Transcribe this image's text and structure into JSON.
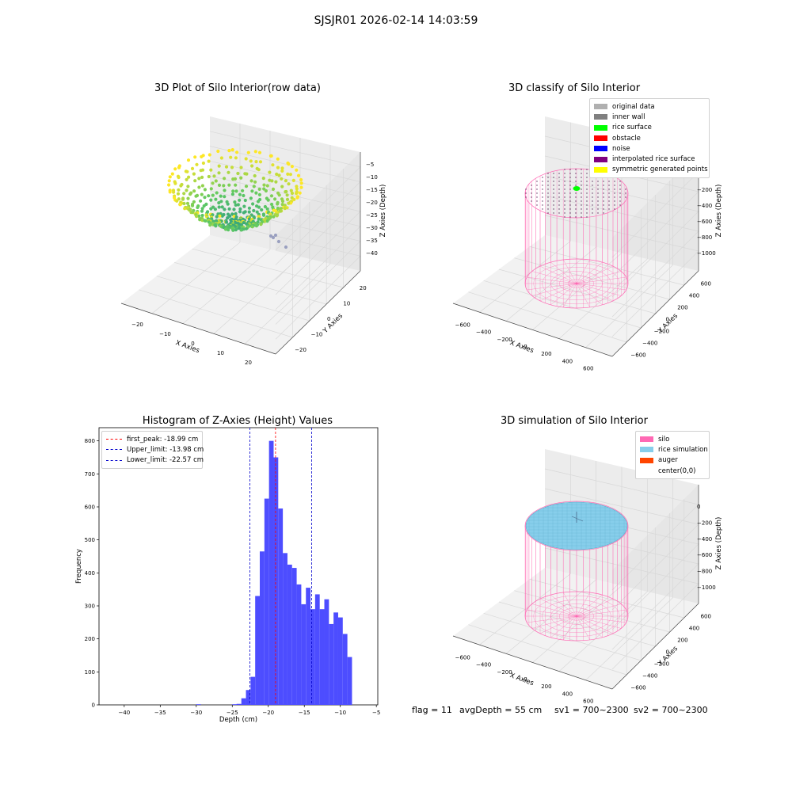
{
  "suptitle": "SJSJR01 2026-02-14 14:03:59",
  "footer": {
    "flag": "flag = 11",
    "avg_depth": "avgDepth = 55 cm",
    "sv1": "sv1 = 700~2300",
    "sv2": "sv2 = 700~2300"
  },
  "colors": {
    "hist_bar": "#4d4dff",
    "first_peak": "#ff0000",
    "limits": "#0000cc",
    "silo": "#ff69b4",
    "rice_simulation": "#87ceeb",
    "auger": "#ff4500",
    "rice_surface": "#00ff00"
  },
  "chart_data": [
    {
      "type": "scatter3d",
      "title": "3D Plot of Silo Interior(row data)",
      "xlabel": "X Axies",
      "ylabel": "Y Axies",
      "zlabel": "Z Axies (Depth)",
      "xticks": [
        "−20",
        "−10",
        "0",
        "10",
        "20"
      ],
      "yticks": [
        "−20",
        "−10",
        "0",
        "10",
        "20"
      ],
      "zticks": [
        "−5",
        "−10",
        "−15",
        "−20",
        "−25",
        "−30",
        "−35",
        "−40"
      ],
      "xlim": [
        -25,
        25
      ],
      "ylim": [
        -25,
        25
      ],
      "zlim": [
        -42,
        -5
      ],
      "colormap": "viridis",
      "description_shape": "bowl"
    },
    {
      "type": "scatter3d",
      "title": "3D classify of Silo Interior",
      "xlabel": "X Axies",
      "ylabel": "Y Axies",
      "zlabel": "Z Axies (Depth)",
      "xticks": [
        "−600",
        "−400",
        "−200",
        "0",
        "200",
        "400",
        "600"
      ],
      "yticks": [
        "−600",
        "−400",
        "−200",
        "0",
        "200",
        "400",
        "600"
      ],
      "zticks": [
        "0",
        "−200",
        "−400",
        "−600",
        "−800",
        "−1000"
      ],
      "xlim": [
        -650,
        650
      ],
      "ylim": [
        -650,
        650
      ],
      "zlim": [
        -1100,
        0
      ],
      "legend": [
        {
          "label": "original data",
          "color": "#b0b0b0"
        },
        {
          "label": "inner wall",
          "color": "#808080"
        },
        {
          "label": "rice surface",
          "color": "#00ff00"
        },
        {
          "label": "obstacle",
          "color": "#ff0000"
        },
        {
          "label": "noise",
          "color": "#0000ff"
        },
        {
          "label": "interpolated rice surface",
          "color": "#800080"
        },
        {
          "label": "symmetric generated points",
          "color": "#ffff00"
        }
      ]
    },
    {
      "type": "bar",
      "title": "Histogram of Z-Axies (Height) Values",
      "xlabel": "Depth (cm)",
      "ylabel": "Frequency",
      "xlim": [
        -43.5,
        -4.8
      ],
      "ylim": [
        0,
        840
      ],
      "xticks": [
        -40,
        -35,
        -30,
        -25,
        -20,
        -15,
        -10,
        -5
      ],
      "yticks": [
        0,
        100,
        200,
        300,
        400,
        500,
        600,
        700,
        800
      ],
      "bin_width": 0.64,
      "bins": [
        {
          "x": -30.0,
          "value": 2
        },
        {
          "x": -25.0,
          "value": 2
        },
        {
          "x": -24.4,
          "value": 3
        },
        {
          "x": -23.74,
          "value": 20
        },
        {
          "x": -23.1,
          "value": 45
        },
        {
          "x": -22.46,
          "value": 85
        },
        {
          "x": -21.82,
          "value": 330
        },
        {
          "x": -21.18,
          "value": 465
        },
        {
          "x": -20.54,
          "value": 625
        },
        {
          "x": -19.9,
          "value": 800
        },
        {
          "x": -19.26,
          "value": 750
        },
        {
          "x": -18.62,
          "value": 595
        },
        {
          "x": -17.98,
          "value": 460
        },
        {
          "x": -17.34,
          "value": 425
        },
        {
          "x": -16.7,
          "value": 415
        },
        {
          "x": -16.06,
          "value": 365
        },
        {
          "x": -15.42,
          "value": 305
        },
        {
          "x": -14.78,
          "value": 355
        },
        {
          "x": -14.14,
          "value": 290
        },
        {
          "x": -13.5,
          "value": 335
        },
        {
          "x": -12.86,
          "value": 290
        },
        {
          "x": -12.22,
          "value": 320
        },
        {
          "x": -11.58,
          "value": 245
        },
        {
          "x": -10.94,
          "value": 280
        },
        {
          "x": -10.3,
          "value": 265
        },
        {
          "x": -9.66,
          "value": 215
        },
        {
          "x": -9.02,
          "value": 145
        }
      ],
      "vlines": [
        {
          "label": "first_peak: -18.99 cm",
          "x": -18.99,
          "color": "#ff0000"
        },
        {
          "label": "Upper_limit: -13.98 cm",
          "x": -13.98,
          "color": "#0000cc"
        },
        {
          "label": "Lower_limit: -22.57 cm",
          "x": -22.57,
          "color": "#0000cc"
        }
      ]
    },
    {
      "type": "surface3d",
      "title": "3D simulation of Silo Interior",
      "xlabel": "X Axies",
      "ylabel": "Y Axies",
      "zlabel": "Z Axies (Depth)",
      "xticks": [
        "−600",
        "−400",
        "−200",
        "0",
        "200",
        "400",
        "600"
      ],
      "yticks": [
        "−600",
        "−400",
        "−200",
        "0",
        "200",
        "400",
        "600"
      ],
      "zticks": [
        "0",
        "−200",
        "−400",
        "−600",
        "−800",
        "−1000"
      ],
      "xlim": [
        -650,
        650
      ],
      "ylim": [
        -650,
        650
      ],
      "zlim": [
        -1100,
        0
      ],
      "legend": [
        {
          "label": "silo",
          "color": "#ff69b4"
        },
        {
          "label": "rice simulation",
          "color": "#87ceeb"
        },
        {
          "label": "auger",
          "color": "#ff4500"
        },
        {
          "label": "center(0,0)",
          "color": "#ffffff"
        }
      ]
    }
  ]
}
